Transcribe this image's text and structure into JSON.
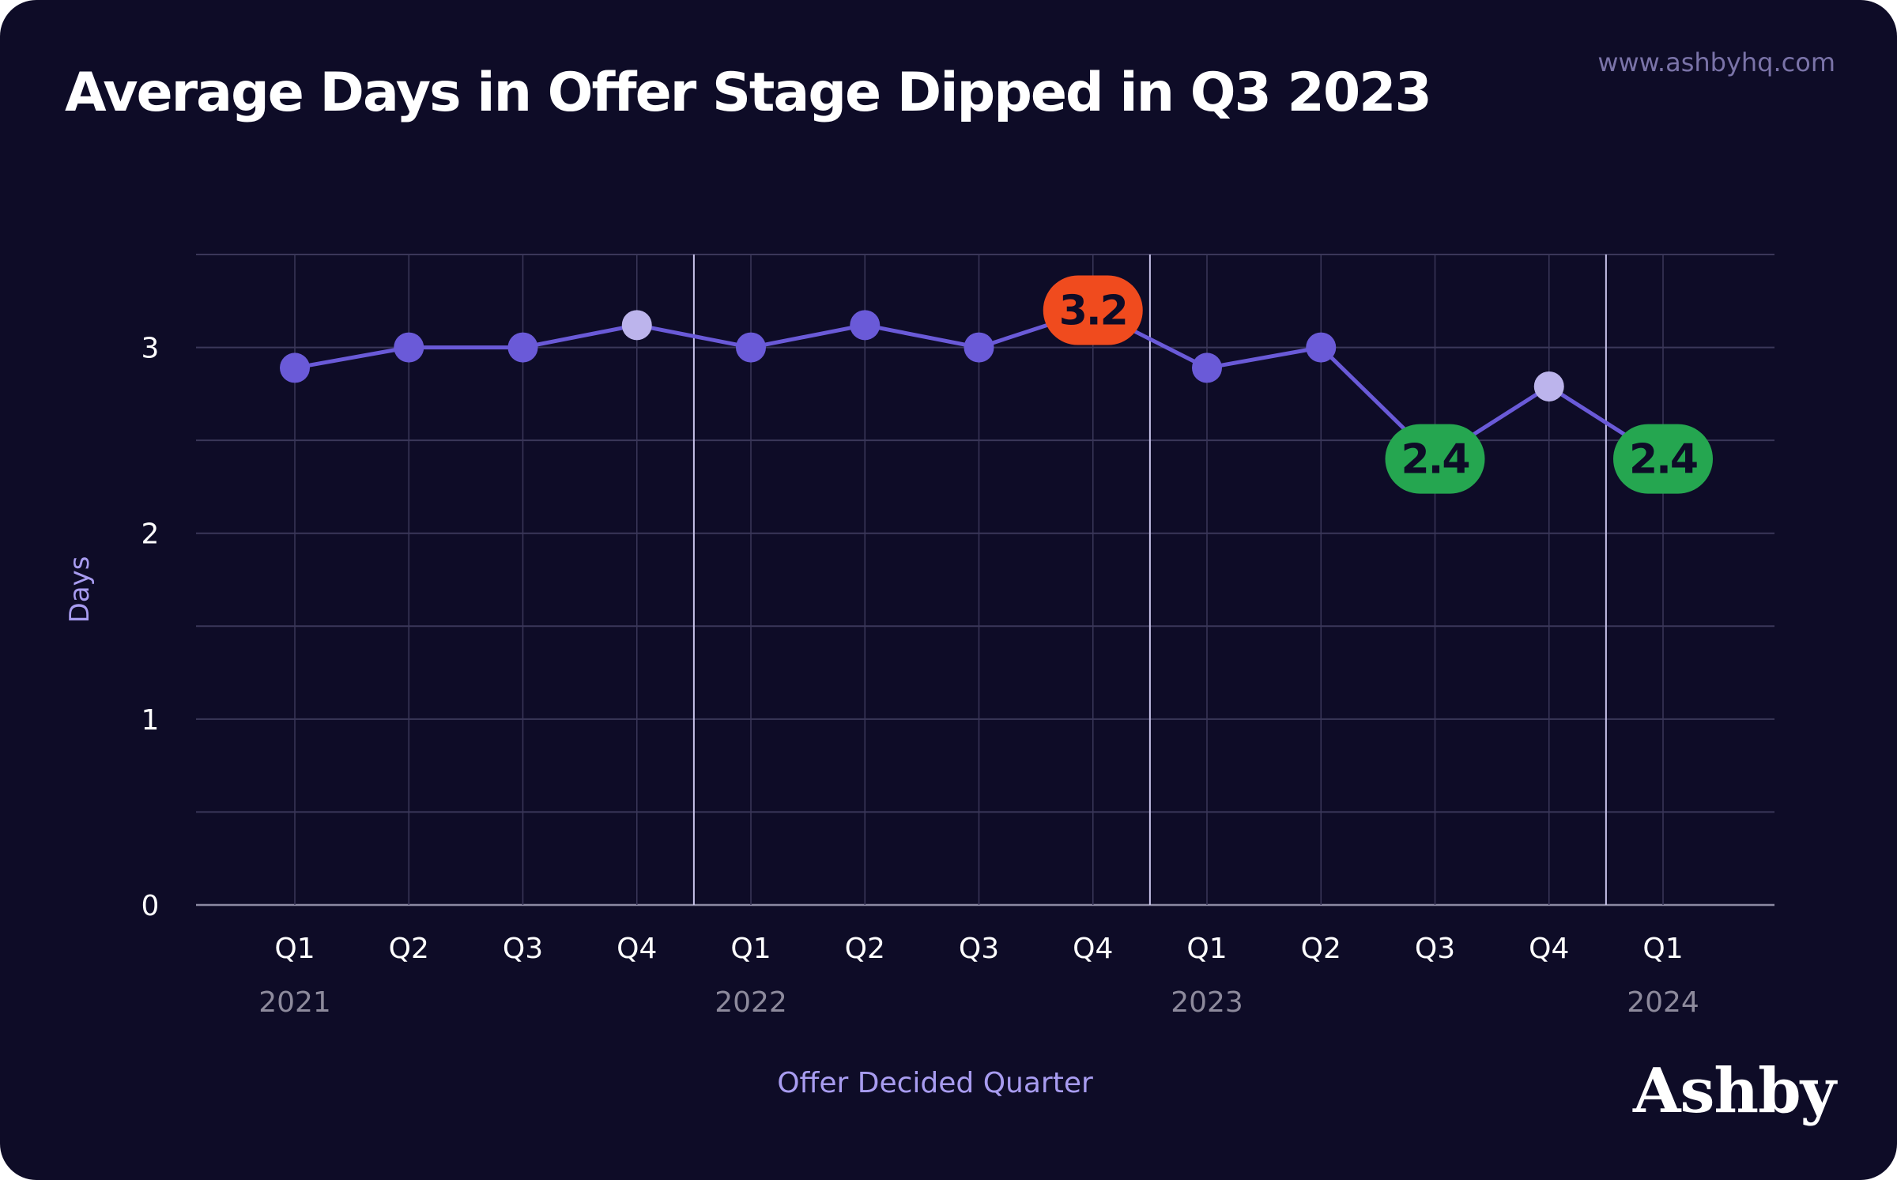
{
  "header": {
    "title": "Average Days in Offer Stage Dipped in Q3 2023",
    "source_url": "www.ashbyhq.com"
  },
  "brand": {
    "logo_text": "Ashby"
  },
  "colors": {
    "background": "#0e0c27",
    "line": "#6a5ad8",
    "point": "#6a5ad8",
    "point_highlight": "#bcb4ec",
    "badge_high": "#f04b1e",
    "badge_low": "#25a650",
    "badge_text": "#0e0c27",
    "grid": "#3a3759",
    "axis_title": "#a89cf0",
    "year_label": "#8d8a9c",
    "tick_label": "#ffffff"
  },
  "chart_data": {
    "type": "line",
    "xlabel": "Offer Decided Quarter",
    "ylabel": "Days",
    "ylim": [
      0,
      3.5
    ],
    "yticks": [
      0,
      1,
      2,
      3
    ],
    "grid": true,
    "categories": [
      "Q1",
      "Q2",
      "Q3",
      "Q4",
      "Q1",
      "Q2",
      "Q3",
      "Q4",
      "Q1",
      "Q2",
      "Q3",
      "Q4",
      "Q1"
    ],
    "year_labels": [
      {
        "label": "2021",
        "index": 0
      },
      {
        "label": "2022",
        "index": 4
      },
      {
        "label": "2023",
        "index": 8
      },
      {
        "label": "2024",
        "index": 12
      }
    ],
    "year_boundaries": [
      3.5,
      7.5,
      11.5
    ],
    "values": [
      2.89,
      3.0,
      3.0,
      3.12,
      3.0,
      3.12,
      3.0,
      3.2,
      2.89,
      3.0,
      2.4,
      2.79,
      2.4
    ],
    "highlighted_points": [
      3,
      11
    ],
    "labels": [
      {
        "index": 7,
        "text": "3.2",
        "kind": "high"
      },
      {
        "index": 10,
        "text": "2.4",
        "kind": "low"
      },
      {
        "index": 12,
        "text": "2.4",
        "kind": "low"
      }
    ]
  }
}
